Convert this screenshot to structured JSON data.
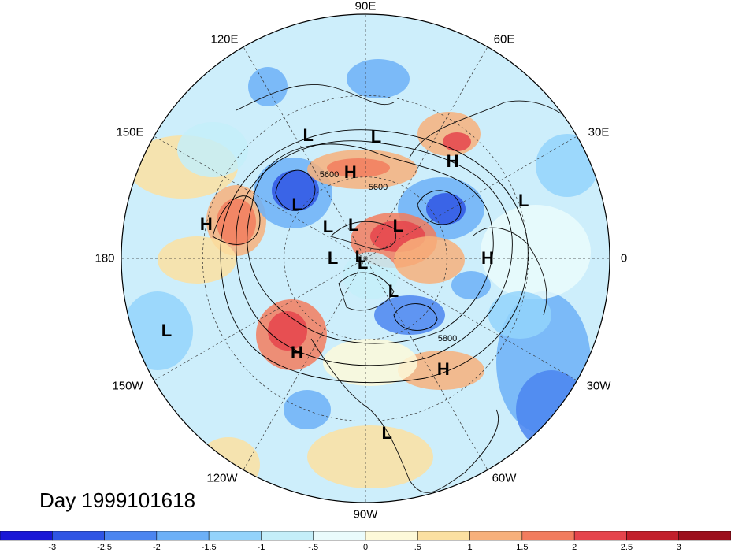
{
  "title": "Day 1999101618",
  "lon_labels": [
    "90E",
    "60E",
    "30E",
    "0",
    "30W",
    "60W",
    "90W",
    "120W",
    "150W",
    "180",
    "150E",
    "120E"
  ],
  "contour_labels": [
    "5600",
    "5600",
    "5800"
  ],
  "pressure_centers": [
    {
      "type": "L",
      "lon": 115,
      "lat": 40
    },
    {
      "type": "H",
      "lon": 100,
      "lat": 58
    },
    {
      "type": "L",
      "lon": 85,
      "lat": 45
    },
    {
      "type": "H",
      "lon": 48,
      "lat": 42
    },
    {
      "type": "L",
      "lon": 20,
      "lat": 28
    },
    {
      "type": "L",
      "lon": 142,
      "lat": 58
    },
    {
      "type": "L",
      "lon": 140,
      "lat": 72
    },
    {
      "type": "L",
      "lon": 110,
      "lat": 77
    },
    {
      "type": "L",
      "lon": 45,
      "lat": 73
    },
    {
      "type": "H",
      "lon": 168,
      "lat": 30
    },
    {
      "type": "L",
      "lon": 180,
      "lat": 78
    },
    {
      "type": "L",
      "lon": 166,
      "lat": 88
    },
    {
      "type": "L",
      "lon": -120,
      "lat": 88
    },
    {
      "type": "H",
      "lon": 0,
      "lat": 45
    },
    {
      "type": "L",
      "lon": -50,
      "lat": 74
    },
    {
      "type": "L",
      "lon": -160,
      "lat": 12
    },
    {
      "type": "H",
      "lon": -126,
      "lat": 47
    },
    {
      "type": "H",
      "lon": -55,
      "lat": 40
    },
    {
      "type": "L",
      "lon": -83,
      "lat": 25
    }
  ],
  "colorbar": {
    "ticks": [
      "-3",
      "-2.5",
      "-2",
      "-1.5",
      "-1",
      "-.5",
      "0",
      ".5",
      "1",
      "1.5",
      "2",
      "2.5",
      "3"
    ],
    "colors": [
      "#1a17d6",
      "#2f55e4",
      "#4b85f0",
      "#6cb0f7",
      "#93d3fb",
      "#c4eef9",
      "#eafbfc",
      "#fdf9d9",
      "#fbe0a1",
      "#f7b07b",
      "#f27c5e",
      "#e5444c",
      "#c21f2b",
      "#9c0f1c"
    ]
  },
  "legend_title": ""
}
